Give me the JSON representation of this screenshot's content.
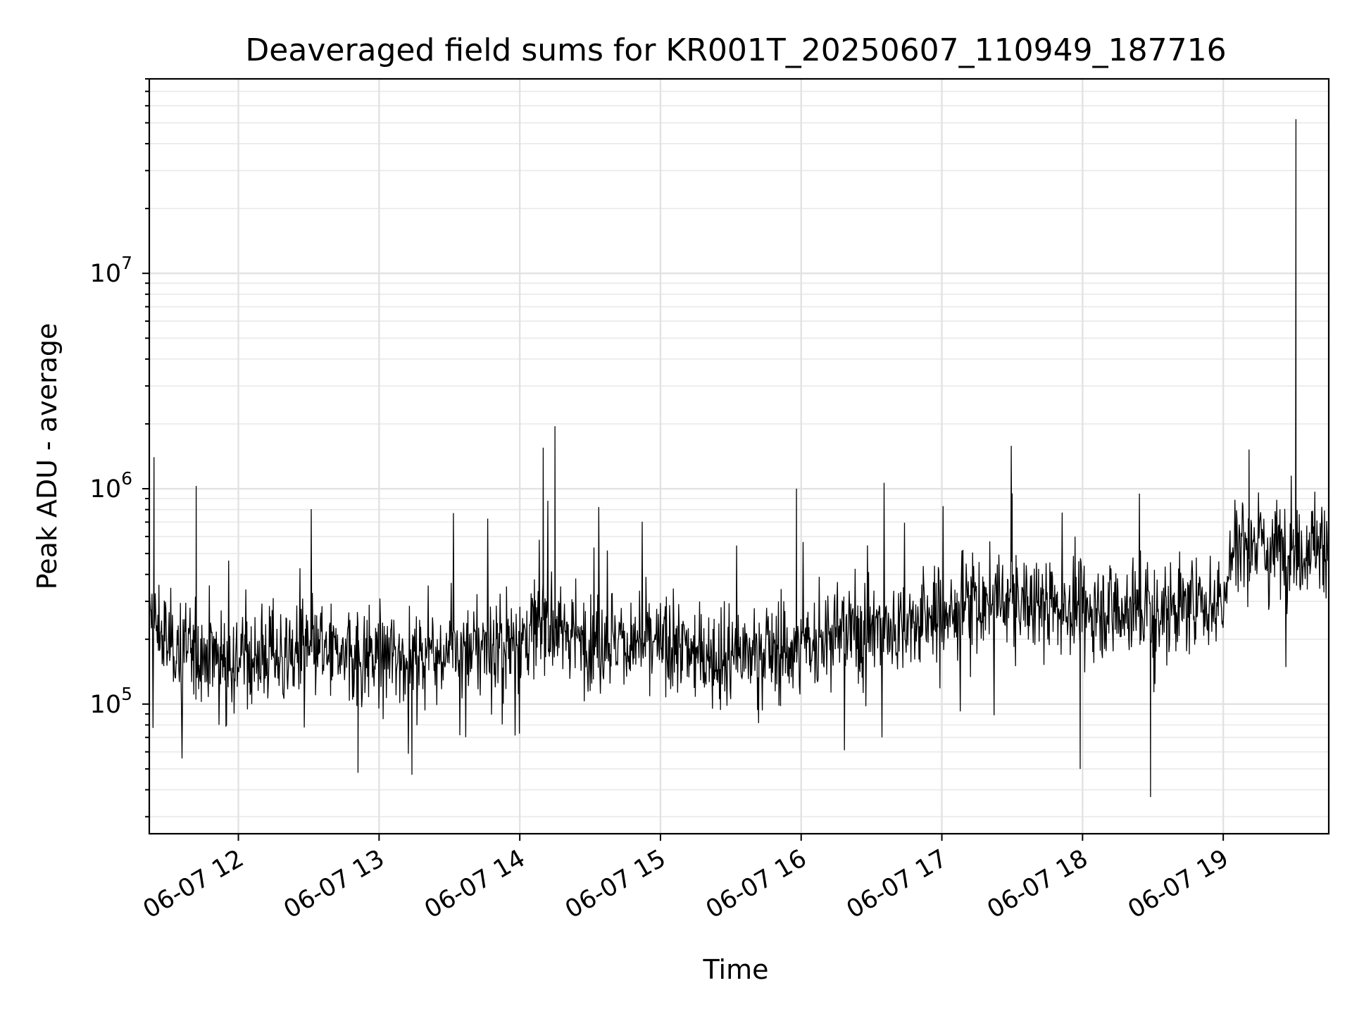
{
  "chart_data": {
    "type": "line",
    "title": "Deaveraged field sums for KR001T_20250607_110949_187716",
    "xlabel": "Time",
    "ylabel": "Peak ADU - average",
    "yscale": "log",
    "grid": true,
    "x_tick_labels": [
      "06-07 12",
      "06-07 13",
      "06-07 14",
      "06-07 15",
      "06-07 16",
      "06-07 17",
      "06-07 18",
      "06-07 19"
    ],
    "x_tick_values": [
      "2025-06-07 12:00",
      "2025-06-07 13:00",
      "2025-06-07 14:00",
      "2025-06-07 15:00",
      "2025-06-07 16:00",
      "2025-06-07 17:00",
      "2025-06-07 18:00",
      "2025-06-07 19:00"
    ],
    "xlim": [
      "2025-06-07 11:22",
      "2025-06-07 19:45"
    ],
    "y_tick_values": [
      100000,
      1000000,
      10000000
    ],
    "y_tick_labels": [
      {
        "base": "10",
        "exp": "5"
      },
      {
        "base": "10",
        "exp": "6"
      },
      {
        "base": "10",
        "exp": "7"
      }
    ],
    "ylim": [
      25000,
      80000000
    ],
    "series": [
      {
        "color": "#000000",
        "x": [
          "2025-06-07 11:22",
          "2025-06-07 11:30",
          "2025-06-07 11:45",
          "2025-06-07 12:00",
          "2025-06-07 12:15",
          "2025-06-07 12:30",
          "2025-06-07 12:45",
          "2025-06-07 13:00",
          "2025-06-07 13:15",
          "2025-06-07 13:30",
          "2025-06-07 13:45",
          "2025-06-07 14:00",
          "2025-06-07 14:10",
          "2025-06-07 14:20",
          "2025-06-07 14:30",
          "2025-06-07 14:45",
          "2025-06-07 15:00",
          "2025-06-07 15:15",
          "2025-06-07 15:30",
          "2025-06-07 15:45",
          "2025-06-07 16:00",
          "2025-06-07 16:15",
          "2025-06-07 16:30",
          "2025-06-07 16:45",
          "2025-06-07 17:00",
          "2025-06-07 17:15",
          "2025-06-07 17:30",
          "2025-06-07 17:45",
          "2025-06-07 18:00",
          "2025-06-07 18:15",
          "2025-06-07 18:30",
          "2025-06-07 18:45",
          "2025-06-07 19:00",
          "2025-06-07 19:05",
          "2025-06-07 19:15",
          "2025-06-07 19:30",
          "2025-06-07 19:45"
        ],
        "values": [
          250000,
          190000,
          175000,
          165000,
          170000,
          175000,
          170000,
          165000,
          170000,
          175000,
          185000,
          195000,
          240000,
          210000,
          200000,
          195000,
          185000,
          175000,
          165000,
          175000,
          180000,
          210000,
          230000,
          230000,
          260000,
          290000,
          300000,
          290000,
          280000,
          280000,
          270000,
          280000,
          300000,
          580000,
          540000,
          530000,
          560000
        ],
        "notable_points": [
          {
            "x": "2025-06-07 11:24",
            "value": 1400000
          },
          {
            "x": "2025-06-07 11:42",
            "value": 1030000
          },
          {
            "x": "2025-06-07 12:51",
            "value": 48000
          },
          {
            "x": "2025-06-07 13:14",
            "value": 47000
          },
          {
            "x": "2025-06-07 14:15",
            "value": 1950000
          },
          {
            "x": "2025-06-07 14:10",
            "value": 1550000
          },
          {
            "x": "2025-06-07 15:58",
            "value": 1000000
          },
          {
            "x": "2025-06-07 17:30",
            "value": 950000
          },
          {
            "x": "2025-06-07 17:59",
            "value": 50000
          },
          {
            "x": "2025-06-07 18:29",
            "value": 37000
          },
          {
            "x": "2025-06-07 19:11",
            "value": 1520000
          },
          {
            "x": "2025-06-07 19:31",
            "value": 52000000
          }
        ]
      }
    ]
  }
}
